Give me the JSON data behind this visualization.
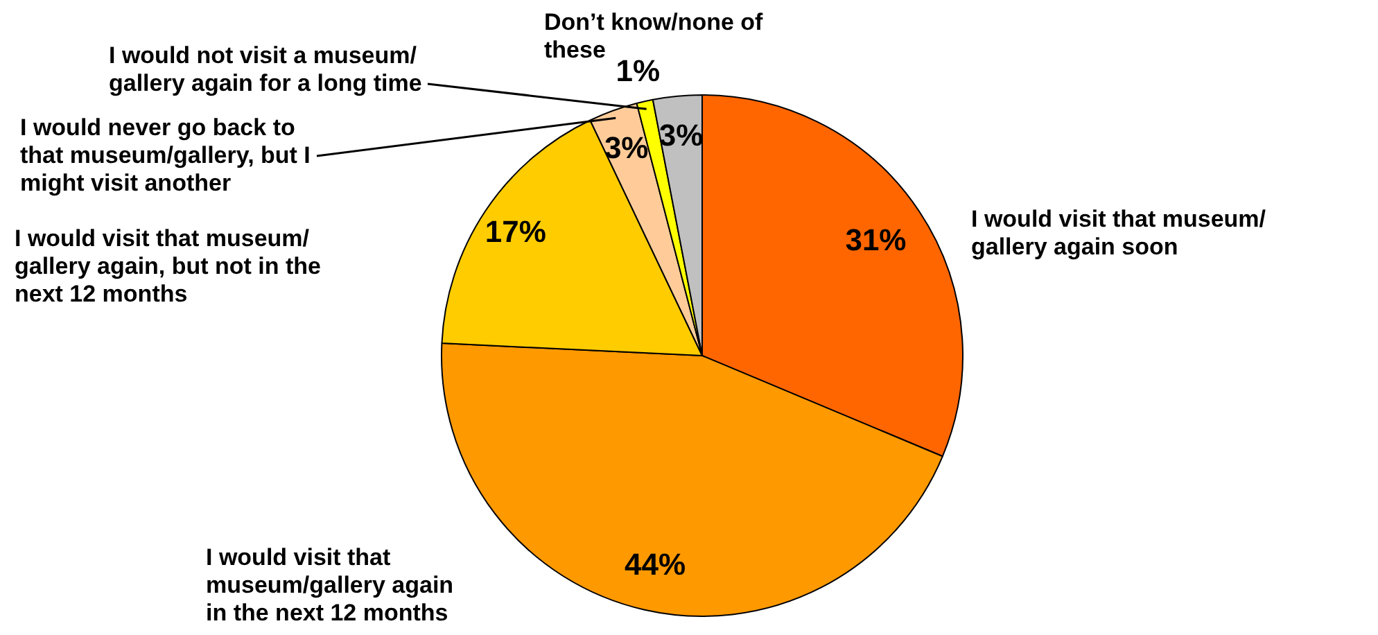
{
  "chart_data": {
    "type": "pie",
    "categories": [
      "I would visit that museum/ gallery again soon",
      "I would visit that museum/gallery again in the next 12 months",
      "I would visit that museum/ gallery again, but not in the next 12 months",
      "I would never go back to that museum/gallery, but I might visit another",
      "I would not visit a museum/ gallery again for a long time",
      "Don’t know/none of these"
    ],
    "values": [
      31,
      44,
      17,
      3,
      1,
      3
    ],
    "colors": [
      "#ff6600",
      "#ff9900",
      "#ffcc00",
      "#ffcc99",
      "#ffff00",
      "#c0c0c0"
    ],
    "value_labels": [
      "31%",
      "44%",
      "17%",
      "3%",
      "1%",
      "3%"
    ]
  }
}
